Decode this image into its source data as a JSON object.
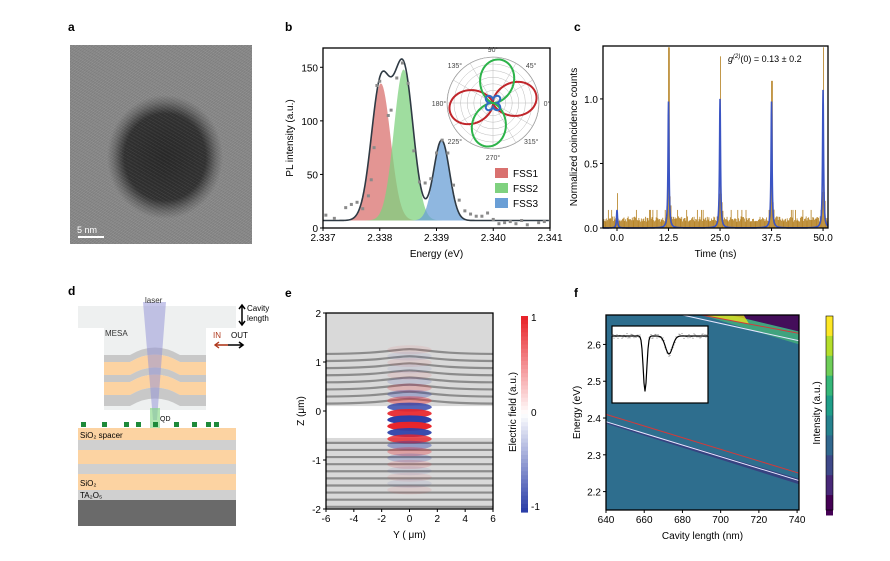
{
  "panel_labels": {
    "a": "a",
    "b": "b",
    "c": "c",
    "d": "d",
    "e": "e",
    "f": "f"
  },
  "panel_a": {
    "scale_bar": "5 nm"
  },
  "chart_data": [
    {
      "panel": "b",
      "type": "area",
      "xlabel": "Energy (eV)",
      "ylabel": "PL intensity (a.u.)",
      "xlim": [
        2.337,
        2.341
      ],
      "ylim": [
        0,
        168
      ],
      "xticks": [
        "2.337",
        "2.338",
        "2.339",
        "2.340",
        "2.341"
      ],
      "yticks": [
        "0",
        "50",
        "100",
        "150"
      ],
      "baseline": 7,
      "series": [
        {
          "name": "FSS1",
          "center": 2.33802,
          "amplitude": 128,
          "sigma": 0.00017,
          "color": "#d9716f"
        },
        {
          "name": "FSS2",
          "center": 2.33842,
          "amplitude": 141,
          "sigma": 0.00017,
          "color": "#7fd17f"
        },
        {
          "name": "FSS3",
          "center": 2.33909,
          "amplitude": 75,
          "sigma": 0.00014,
          "color": "#6a9fd6"
        }
      ],
      "points": [
        [
          2.33705,
          12
        ],
        [
          2.3372,
          9
        ],
        [
          2.3374,
          19
        ],
        [
          2.3375,
          22
        ],
        [
          2.3376,
          24
        ],
        [
          2.3377,
          18
        ],
        [
          2.3378,
          30
        ],
        [
          2.33785,
          45
        ],
        [
          2.3379,
          75
        ],
        [
          2.33795,
          133
        ],
        [
          2.338,
          137
        ],
        [
          2.33815,
          105
        ],
        [
          2.3382,
          110
        ],
        [
          2.3383,
          140
        ],
        [
          2.3384,
          154
        ],
        [
          2.3385,
          135
        ],
        [
          2.3386,
          72
        ],
        [
          2.3387,
          43
        ],
        [
          2.3388,
          42
        ],
        [
          2.3389,
          46
        ],
        [
          2.339,
          70
        ],
        [
          2.3391,
          82
        ],
        [
          2.3392,
          70
        ],
        [
          2.3393,
          40
        ],
        [
          2.3394,
          26
        ],
        [
          2.3395,
          16
        ],
        [
          2.3396,
          13
        ],
        [
          2.3397,
          11
        ],
        [
          2.3398,
          11
        ],
        [
          2.3399,
          14
        ],
        [
          2.34,
          8
        ],
        [
          2.3401,
          4
        ],
        [
          2.3402,
          5
        ],
        [
          2.3403,
          6
        ],
        [
          2.3404,
          4
        ],
        [
          2.3405,
          7
        ],
        [
          2.3406,
          3
        ],
        [
          2.3408,
          5
        ],
        [
          2.3409,
          6
        ]
      ],
      "legend_placement": "right",
      "inset": {
        "type": "polar",
        "angle_labels": [
          "90°",
          "45°",
          "0°",
          "315°",
          "270°",
          "225°",
          "180°",
          "135°"
        ],
        "series": [
          {
            "name": "FSS1",
            "max_angle_deg": 10,
            "color": "#c0262b"
          },
          {
            "name": "FSS2",
            "max_angle_deg": 80,
            "color": "#2db34a"
          },
          {
            "name": "FSS3",
            "max_angle_deg": 45,
            "color": "#2e6bc4"
          }
        ]
      }
    },
    {
      "panel": "c",
      "type": "bar",
      "xlabel": "Time (ns)",
      "ylabel": "Normalized coincidence counts",
      "xlim": [
        -3.4,
        51.2
      ],
      "ylim": [
        0,
        1.41
      ],
      "xticks": [
        "0.0",
        "12.5",
        "25.0",
        "37.5",
        "50.0"
      ],
      "yticks": [
        "0.0",
        "0.5",
        "1.0"
      ],
      "annotation": "g(2)(0) = 0.13 ± 0.2",
      "annotation_parts": {
        "g": "g",
        "sup": "(2)",
        "rest": "(0) = 0.13 ± 0.2"
      },
      "peaks": {
        "times": [
          0,
          12.5,
          25,
          37.5,
          50
        ],
        "histogram_max": [
          0.27,
          1.4,
          1.33,
          1.14,
          1.4
        ],
        "fit_height": [
          0.14,
          0.98,
          1.0,
          0.98,
          1.07
        ]
      },
      "background_level": 0.07,
      "colors": {
        "histogram": "#b8862b",
        "fit": "#3b55c4"
      }
    },
    {
      "panel": "e",
      "type": "heatmap",
      "xlabel": "Y ( μm)",
      "ylabel": "Z (μm)",
      "xlim": [
        -6,
        6
      ],
      "ylim": [
        -2,
        2
      ],
      "xticks": [
        "-6",
        "-4",
        "-2",
        "0",
        "2",
        "4",
        "6"
      ],
      "yticks": [
        "-2",
        "-1",
        "0",
        "1",
        "2"
      ],
      "colorbar": {
        "label": "Electric field (a.u.)",
        "ticks": [
          "1",
          "0",
          "-1"
        ],
        "colors": [
          "#e8242a",
          "#ffffff",
          "#2b3ea8"
        ]
      },
      "cavity_z_range": [
        -0.55,
        0.1
      ]
    },
    {
      "panel": "f",
      "type": "heatmap",
      "xlabel": "Cavity length (nm)",
      "ylabel": "Energy (eV)",
      "xlim": [
        640,
        741
      ],
      "ylim": [
        2.15,
        2.68
      ],
      "xticks": [
        "640",
        "660",
        "680",
        "700",
        "720",
        "740"
      ],
      "yticks": [
        "2.2",
        "2.3",
        "2.4",
        "2.5",
        "2.6"
      ],
      "colorbar": {
        "label": "Intensity (a.u.)",
        "colormap": "viridis"
      },
      "lines": [
        {
          "color": "#d23a3a",
          "x": [
            640,
            741
          ],
          "y": [
            2.41,
            2.25
          ]
        },
        {
          "color": "#e6e6ff",
          "x": [
            640,
            741
          ],
          "y": [
            2.39,
            2.23
          ]
        },
        {
          "color": "#d23a3a",
          "x": [
            690,
            741
          ],
          "y": [
            2.68,
            2.63
          ]
        },
        {
          "color": "#e6e6ff",
          "x": [
            680,
            741
          ],
          "y": [
            2.68,
            2.61
          ]
        }
      ]
    }
  ],
  "panel_d": {
    "laser": "laser",
    "cavity": "Cavity",
    "length": "length",
    "mesa": "MESA",
    "in": "IN",
    "out": "OUT",
    "qd": "QD",
    "spacer": "SiO₂ spacer",
    "sio2": "SiO₂",
    "ta2o5": "TA₂O₅"
  }
}
